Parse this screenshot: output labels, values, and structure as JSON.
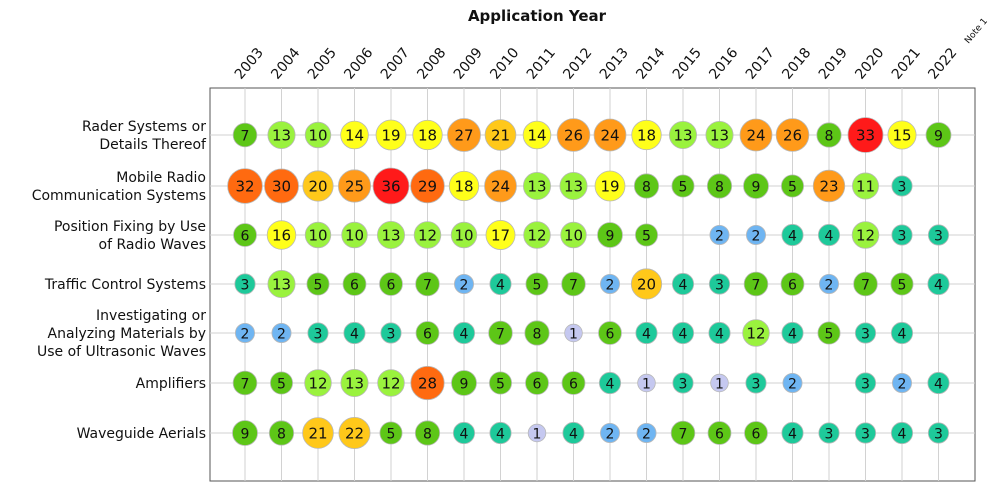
{
  "chart_data": {
    "type": "bubble",
    "title": "Application Year",
    "x_tick_labels": [
      "2003",
      "2004",
      "2005",
      "2006",
      "2007",
      "2008",
      "2009",
      "2010",
      "2011",
      "2012",
      "2013",
      "2014",
      "2015",
      "2016",
      "2017",
      "2018",
      "2019",
      "2020",
      "2021",
      "2022"
    ],
    "x_tick_note": "Note 1",
    "y_categories": [
      "Rader Systems or Details Thereof",
      "Mobile Radio Communication Systems",
      "Position Fixing by Use of Radio Waves",
      "Traffic Control Systems",
      "Investigating or Analyzing Materials by Use of Ultrasonic Waves",
      "Amplifiers",
      "Waveguide Aerials"
    ],
    "y_category_lines": [
      [
        "Rader Systems or",
        "Details Thereof"
      ],
      [
        "Mobile Radio",
        "Communication Systems"
      ],
      [
        "Position Fixing by Use",
        "of Radio Waves"
      ],
      [
        "Traffic Control Systems"
      ],
      [
        "Investigating or",
        "Analyzing Materials by",
        "Use of Ultrasonic Waves"
      ],
      [
        "Amplifiers"
      ],
      [
        "Waveguide Aerials"
      ]
    ],
    "grid": true,
    "matrix": [
      [
        7,
        13,
        10,
        14,
        19,
        18,
        27,
        21,
        14,
        26,
        24,
        18,
        13,
        13,
        24,
        26,
        8,
        33,
        15,
        9
      ],
      [
        32,
        30,
        20,
        25,
        36,
        29,
        18,
        24,
        13,
        13,
        19,
        8,
        5,
        8,
        9,
        5,
        23,
        11,
        3,
        null
      ],
      [
        6,
        16,
        10,
        10,
        13,
        12,
        10,
        17,
        12,
        10,
        9,
        5,
        null,
        2,
        2,
        4,
        4,
        12,
        3,
        3
      ],
      [
        3,
        13,
        5,
        6,
        6,
        7,
        2,
        4,
        5,
        7,
        2,
        20,
        4,
        3,
        7,
        6,
        2,
        7,
        5,
        4
      ],
      [
        2,
        2,
        3,
        4,
        3,
        6,
        4,
        7,
        8,
        1,
        6,
        4,
        4,
        4,
        12,
        4,
        5,
        3,
        4,
        null
      ],
      [
        7,
        5,
        12,
        13,
        12,
        28,
        9,
        5,
        6,
        6,
        4,
        1,
        3,
        1,
        3,
        2,
        null,
        3,
        2,
        4
      ],
      [
        9,
        8,
        21,
        22,
        5,
        8,
        4,
        4,
        1,
        4,
        2,
        2,
        7,
        6,
        6,
        4,
        3,
        3,
        4,
        3
      ]
    ],
    "color_scale": [
      {
        "max": 1,
        "color": "#c5c8f0"
      },
      {
        "max": 2,
        "color": "#6fb5f2"
      },
      {
        "max": 4,
        "color": "#1ec99a"
      },
      {
        "max": 9,
        "color": "#5dc617"
      },
      {
        "max": 13,
        "color": "#9af23e"
      },
      {
        "max": 19,
        "color": "#ffff1a"
      },
      {
        "max": 22,
        "color": "#ffc81a"
      },
      {
        "max": 27,
        "color": "#ff9a1a"
      },
      {
        "max": 32,
        "color": "#ff6a10"
      },
      {
        "max": 99,
        "color": "#ff1a1a"
      }
    ]
  }
}
